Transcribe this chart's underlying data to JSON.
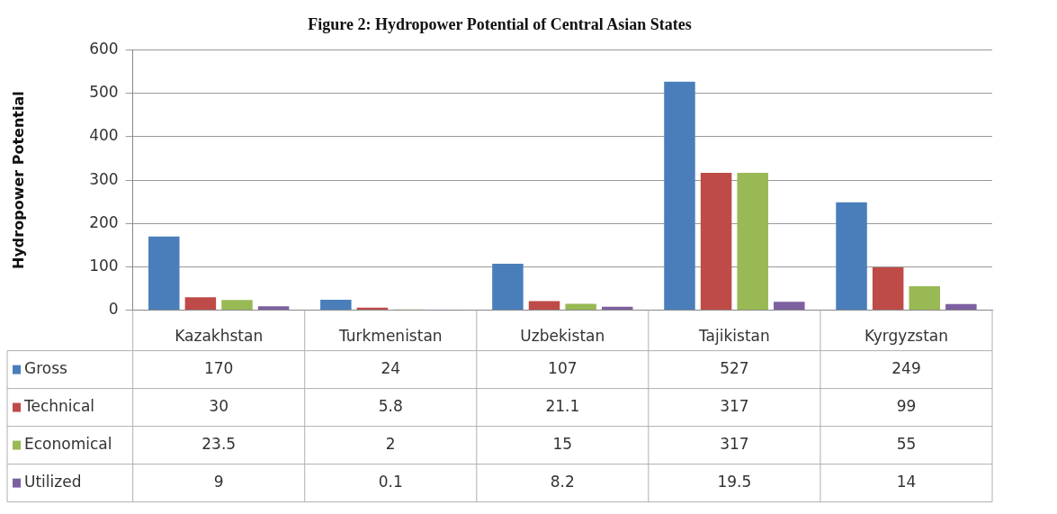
{
  "chart_data": {
    "type": "bar",
    "title": "Figure 2: Hydropower Potential of Central Asian States",
    "ylabel": "Hydropower Potential",
    "categories": [
      "Kazakhstan",
      "Turkmenistan",
      "Uzbekistan",
      "Tajikistan",
      "Kyrgyzstan"
    ],
    "series": [
      {
        "name": "Gross",
        "color": "#4a7ebb",
        "values": [
          170,
          24,
          107,
          527,
          249
        ]
      },
      {
        "name": "Technical",
        "color": "#be4b48",
        "values": [
          30,
          5.8,
          21.1,
          317,
          99
        ]
      },
      {
        "name": "Economical",
        "color": "#98b954",
        "values": [
          23.5,
          2,
          15,
          317,
          55
        ]
      },
      {
        "name": "Utilized",
        "color": "#7d60a0",
        "values": [
          9,
          0.1,
          8.2,
          19.5,
          14
        ]
      }
    ],
    "ylim": [
      0,
      600
    ],
    "yticks": [
      0,
      100,
      200,
      300,
      400,
      500,
      600
    ],
    "grid": "y",
    "legend": "bottom left",
    "data_labels": true
  }
}
